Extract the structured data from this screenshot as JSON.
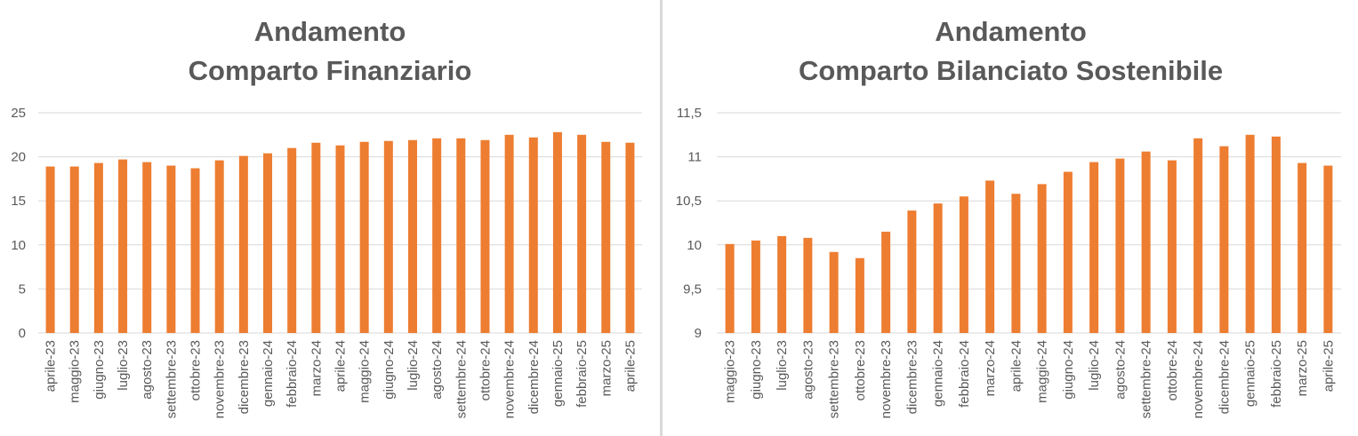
{
  "chart_data": [
    {
      "type": "bar",
      "title_lines": [
        "Andamento",
        "Comparto Finanziario"
      ],
      "categories": [
        "aprile-23",
        "maggio-23",
        "giugno-23",
        "luglio-23",
        "agosto-23",
        "settembre-23",
        "ottobre-23",
        "novembre-23",
        "dicembre-23",
        "gennaio-24",
        "febbraio-24",
        "marzo-24",
        "aprile-24",
        "maggio-24",
        "giugno-24",
        "luglio-24",
        "agosto-24",
        "settembre-24",
        "ottobre-24",
        "novembre-24",
        "dicembre-24",
        "gennaio-25",
        "febbraio-25",
        "marzo-25",
        "aprile-25"
      ],
      "values": [
        18.9,
        18.9,
        19.3,
        19.7,
        19.4,
        19.0,
        18.7,
        19.6,
        20.1,
        20.4,
        21.0,
        21.6,
        21.3,
        21.7,
        21.8,
        21.9,
        22.1,
        22.1,
        21.9,
        22.5,
        22.2,
        22.8,
        22.5,
        21.7,
        21.6
      ],
      "ylim": [
        0,
        25
      ],
      "yticks": [
        0,
        5,
        10,
        15,
        20,
        25
      ],
      "ytick_labels": [
        "0",
        "5",
        "10",
        "15",
        "20",
        "25"
      ],
      "grid": true,
      "bar_color": "#ED7D31"
    },
    {
      "type": "bar",
      "title_lines": [
        "Andamento",
        "Comparto Bilanciato Sostenibile"
      ],
      "categories": [
        "maggio-23",
        "giugno-23",
        "luglio-23",
        "agosto-23",
        "settembre-23",
        "ottobre-23",
        "novembre-23",
        "dicembre-23",
        "gennaio-24",
        "febbraio-24",
        "marzo-24",
        "aprile-24",
        "maggio-24",
        "giugno-24",
        "luglio-24",
        "agosto-24",
        "settembre-24",
        "ottobre-24",
        "novembre-24",
        "dicembre-24",
        "gennaio-25",
        "febbraio-25",
        "marzo-25",
        "aprile-25"
      ],
      "values": [
        10.01,
        10.05,
        10.1,
        10.08,
        9.92,
        9.85,
        10.15,
        10.39,
        10.47,
        10.55,
        10.73,
        10.58,
        10.69,
        10.83,
        10.94,
        10.98,
        11.06,
        10.96,
        11.21,
        11.12,
        11.25,
        11.23,
        10.93,
        10.9
      ],
      "ylim": [
        9,
        11.5
      ],
      "yticks": [
        9,
        9.5,
        10,
        10.5,
        11,
        11.5
      ],
      "ytick_labels": [
        "9",
        "9,5",
        "10",
        "10,5",
        "11",
        "11,5"
      ],
      "grid": true,
      "bar_color": "#ED7D31"
    }
  ]
}
